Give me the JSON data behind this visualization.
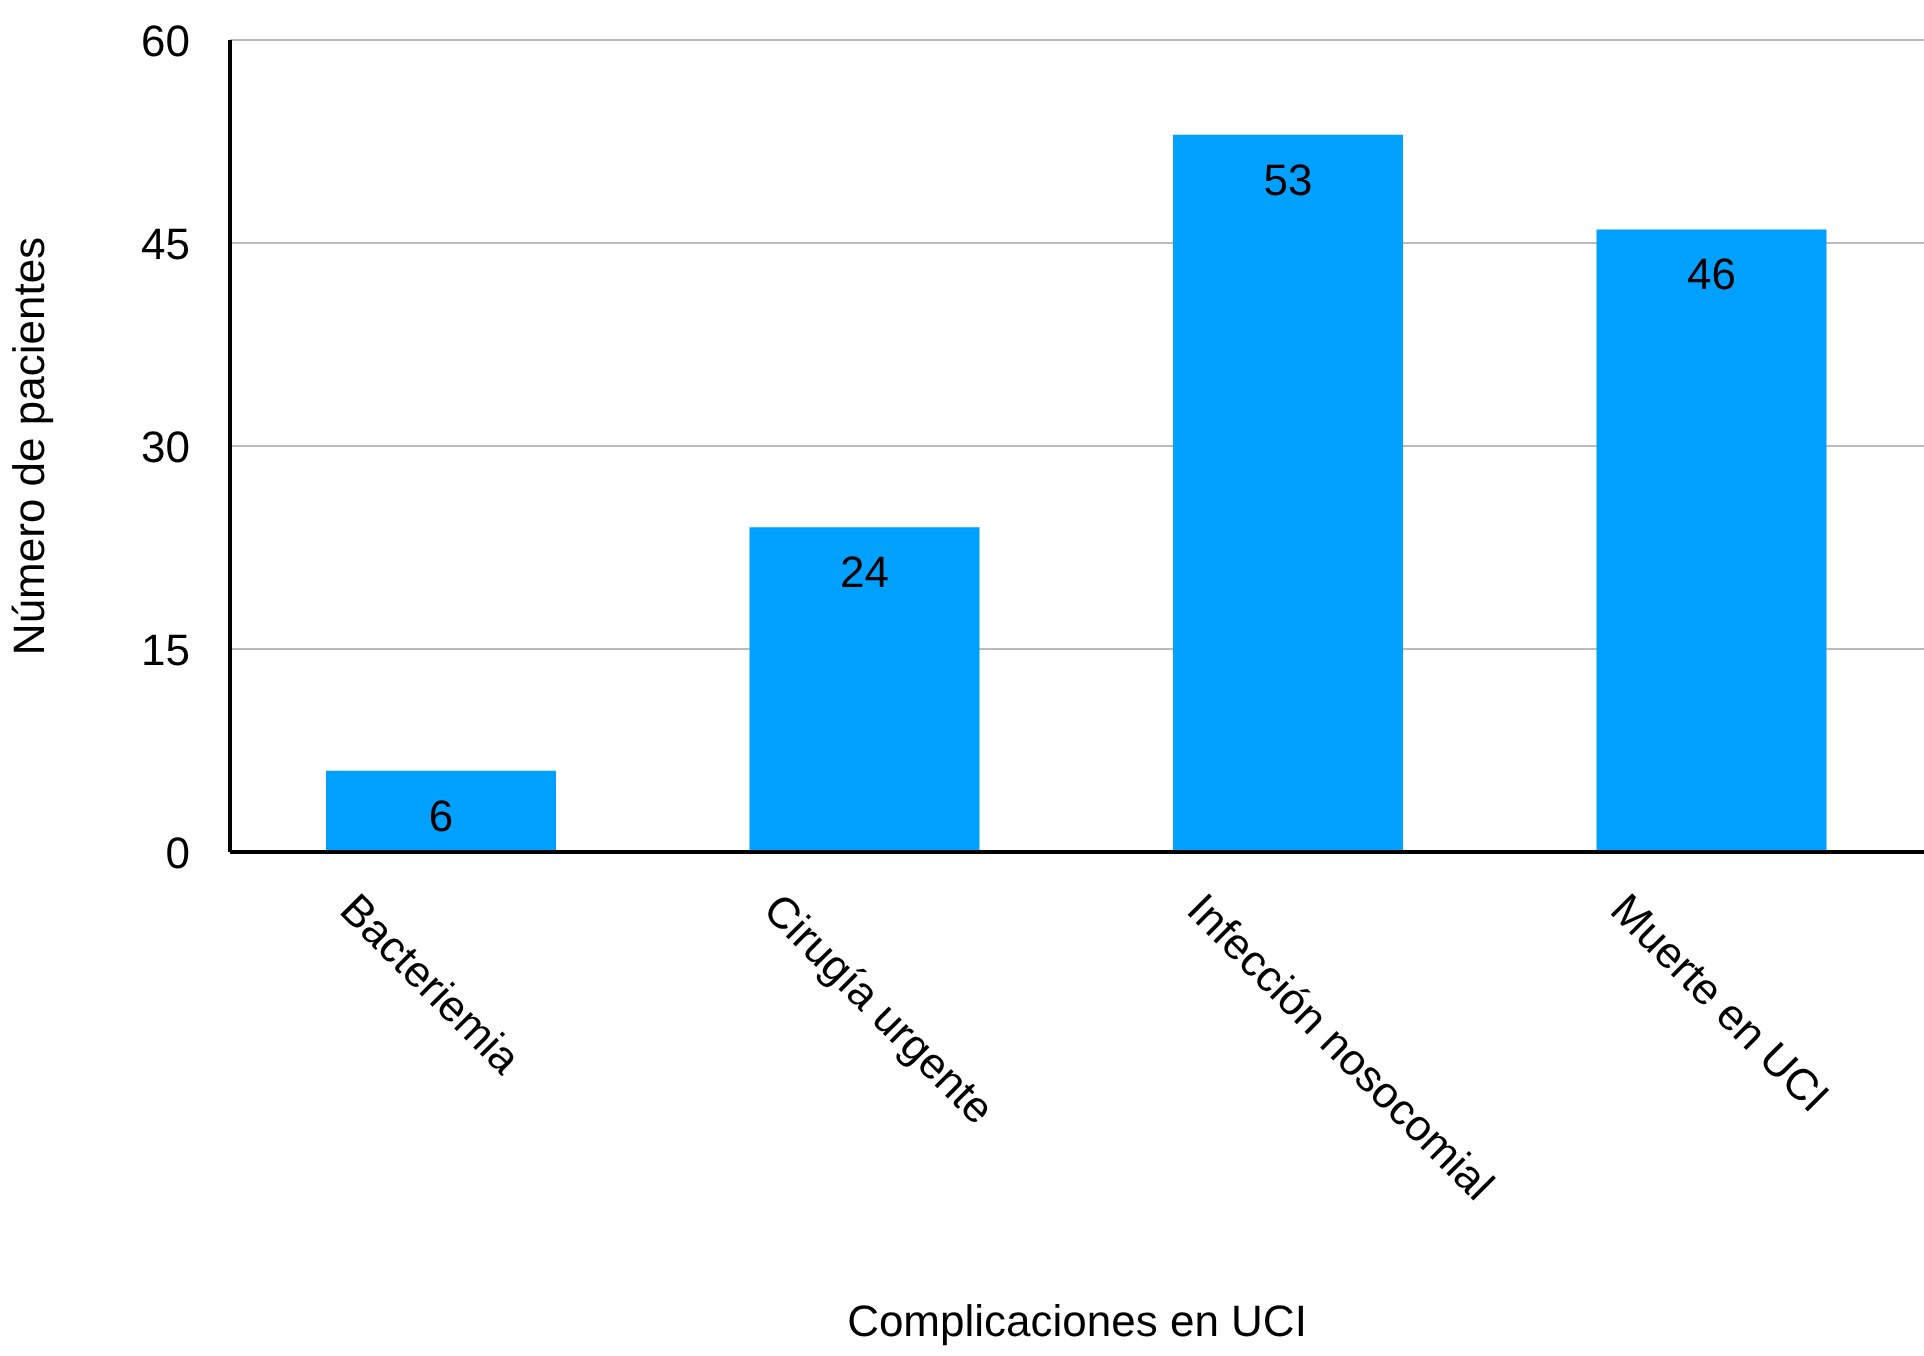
{
  "chart_data": {
    "type": "bar",
    "xlabel": "Complicaciones en UCI",
    "ylabel": "Número de pacientes",
    "categories": [
      "Bacteriemia",
      "Cirugía urgente",
      "Infección nosocomial",
      "Muerte en UCI"
    ],
    "values": [
      6,
      24,
      53,
      46
    ],
    "color": "#00a0ff",
    "ylim": [
      0,
      60
    ],
    "yticks": [
      0,
      15,
      30,
      45,
      60
    ],
    "grid": "y",
    "data_labels": true
  }
}
